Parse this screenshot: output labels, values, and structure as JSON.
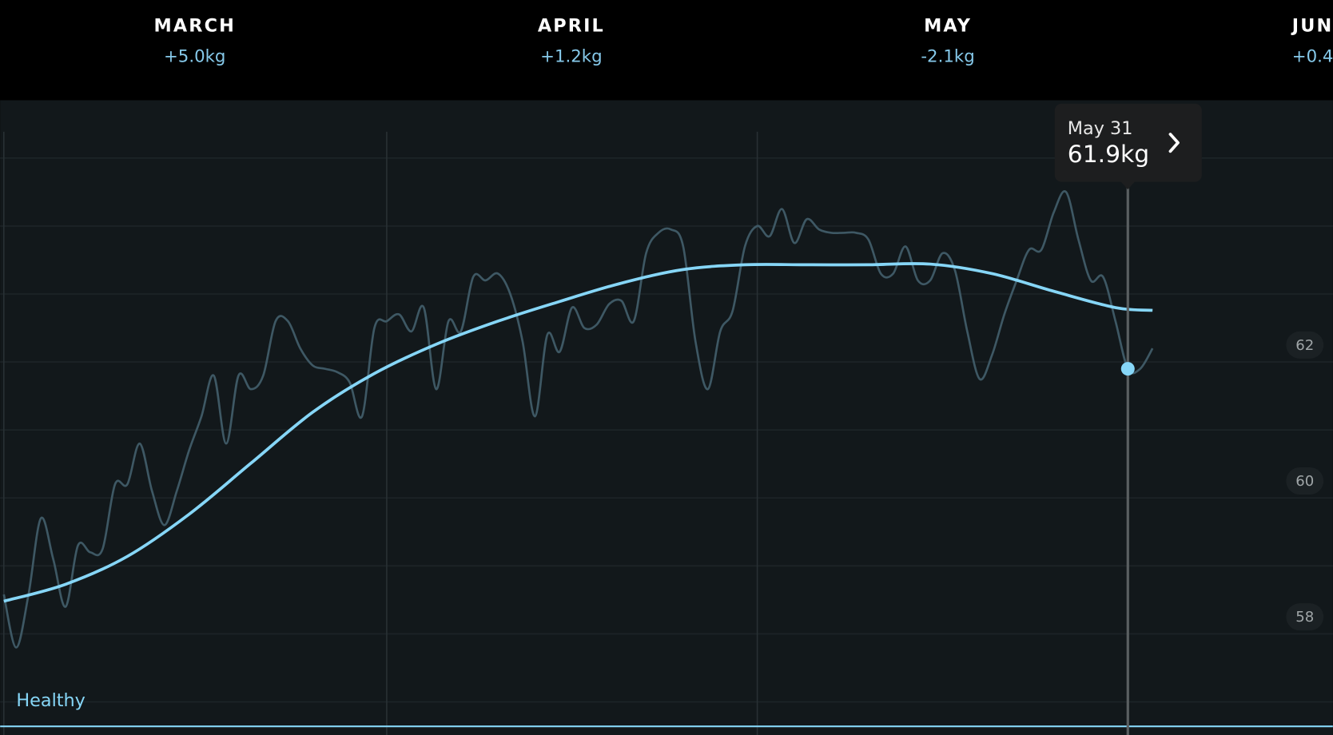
{
  "header": {
    "months": [
      {
        "name": "MARCH",
        "change": "+5.0kg"
      },
      {
        "name": "APRIL",
        "change": "+1.2kg"
      },
      {
        "name": "MAY",
        "change": "-2.1kg"
      },
      {
        "name": "JUN",
        "change": "+0.4"
      }
    ]
  },
  "chart_data": {
    "type": "line",
    "xlim": [
      -0.3,
      107.6
    ],
    "ylim": [
      56.5,
      65.5
    ],
    "xticks": [
      0,
      31,
      61
    ],
    "yticks": [
      58,
      60,
      62
    ],
    "minor_yticks": [
      57,
      59,
      61,
      63,
      64,
      65
    ],
    "grid": true,
    "series": [
      {
        "color": "#3e5864",
        "x": [
          0,
          1,
          2,
          3,
          4,
          5,
          6,
          7,
          8,
          9,
          10,
          11,
          12,
          13,
          14,
          15,
          16,
          17,
          18,
          19,
          20,
          21,
          22,
          23,
          24,
          25,
          26,
          27,
          28,
          29,
          30,
          31,
          32,
          33,
          34,
          35,
          36,
          37,
          38,
          39,
          40,
          41,
          42,
          43,
          44,
          45,
          46,
          47,
          48,
          49,
          50,
          51,
          52,
          53,
          54,
          55,
          56,
          57,
          58,
          59,
          60,
          61,
          62,
          63,
          64,
          65,
          66,
          67,
          68,
          69,
          70,
          71,
          72,
          73,
          74,
          75,
          76,
          77,
          78,
          79,
          80,
          81,
          82,
          83,
          84,
          85,
          86,
          87,
          88,
          89,
          90,
          91,
          92,
          93
        ],
        "values": [
          58.58,
          57.8,
          58.58,
          59.7,
          59.1,
          58.4,
          59.3,
          59.2,
          59.25,
          60.2,
          60.2,
          60.8,
          60.1,
          59.6,
          60.1,
          60.7,
          61.2,
          61.8,
          60.8,
          61.8,
          61.6,
          61.8,
          62.6,
          62.6,
          62.2,
          61.95,
          61.9,
          61.85,
          61.7,
          61.2,
          62.5,
          62.6,
          62.7,
          62.45,
          62.8,
          61.6,
          62.6,
          62.45,
          63.25,
          63.2,
          63.3,
          63.0,
          62.3,
          61.2,
          62.4,
          62.15,
          62.8,
          62.5,
          62.55,
          62.85,
          62.9,
          62.6,
          63.6,
          63.9,
          63.95,
          63.7,
          62.3,
          61.6,
          62.45,
          62.75,
          63.7,
          64.0,
          63.85,
          64.25,
          63.75,
          64.1,
          63.95,
          63.9,
          63.9,
          63.9,
          63.8,
          63.3,
          63.3,
          63.7,
          63.2,
          63.2,
          63.6,
          63.35,
          62.45,
          61.75,
          62.1,
          62.7,
          63.2,
          63.65,
          63.65,
          64.2,
          64.5,
          63.8,
          63.2,
          63.25,
          62.6,
          61.9,
          61.9,
          62.2
        ]
      },
      {
        "color": "#86d6f7",
        "x": [
          0,
          5,
          10,
          15,
          20,
          25,
          30,
          35,
          40,
          45,
          50,
          55,
          60,
          65,
          70,
          75,
          80,
          85,
          90,
          93
        ],
        "values": [
          58.48,
          58.73,
          59.14,
          59.76,
          60.51,
          61.26,
          61.83,
          62.26,
          62.6,
          62.89,
          63.16,
          63.36,
          63.43,
          63.43,
          63.43,
          63.44,
          63.3,
          63.04,
          62.8,
          62.76
        ]
      }
    ],
    "annotation": {
      "date": "May 31",
      "x": 91,
      "value": 61.9,
      "label": "61.9kg"
    },
    "healthy_label": "Healthy",
    "healthy_min": 56.64
  }
}
